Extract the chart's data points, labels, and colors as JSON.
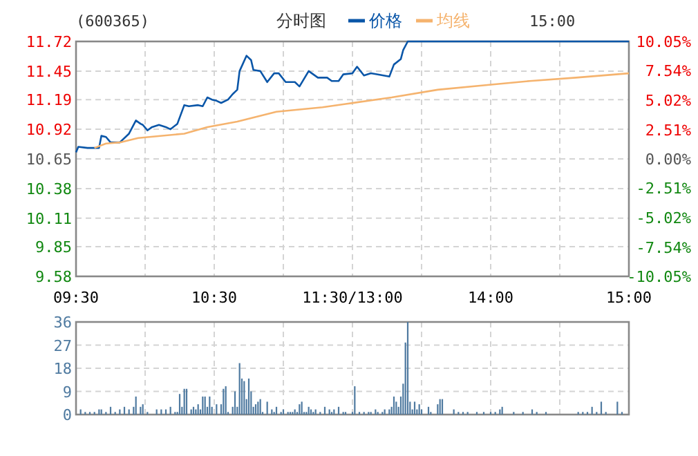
{
  "chart_data": [
    {
      "type": "line",
      "title": "(600365)",
      "subtitle": "分时图",
      "annotations": [
        "15:00"
      ],
      "categories": [
        "09:30",
        null,
        null,
        null,
        null,
        null,
        null,
        null,
        null,
        null,
        null,
        null,
        null,
        null,
        null,
        null,
        null,
        null,
        null,
        null,
        null,
        null,
        null,
        null,
        null,
        null,
        null,
        null,
        null,
        null,
        null,
        null,
        null,
        null,
        null,
        null,
        null,
        null,
        null,
        null,
        null,
        null,
        null,
        null,
        null,
        null,
        null,
        null,
        null,
        null,
        null,
        null,
        null,
        null,
        null,
        null,
        null,
        null,
        null,
        null,
        "10:30",
        null,
        null,
        null,
        null,
        null,
        null,
        null,
        null,
        null,
        null,
        null,
        null,
        null,
        null,
        null,
        null,
        null,
        null,
        null,
        null,
        null,
        null,
        null,
        null,
        null,
        null,
        null,
        null,
        null,
        null,
        null,
        null,
        null,
        null,
        null,
        null,
        null,
        null,
        null,
        null,
        null,
        null,
        null,
        null,
        null,
        null,
        null,
        null,
        null,
        null,
        null,
        null,
        null,
        null,
        null,
        null,
        null,
        null,
        null,
        "11:30/13:00",
        null,
        null,
        null,
        null,
        null,
        null,
        null,
        null,
        null,
        null,
        null,
        null,
        null,
        null,
        null,
        null,
        null,
        null,
        null,
        null,
        null,
        null,
        null,
        null,
        null,
        null,
        null,
        null,
        null,
        null,
        null,
        null,
        null,
        null,
        null,
        null,
        null,
        null,
        null,
        null,
        null,
        null,
        null,
        null,
        null,
        null,
        null,
        null,
        null,
        null,
        null,
        null,
        null,
        null,
        null,
        null,
        null,
        null,
        null,
        "14:00",
        null,
        null,
        null,
        null,
        null,
        null,
        null,
        null,
        null,
        null,
        null,
        null,
        null,
        null,
        null,
        null,
        null,
        null,
        null,
        null,
        null,
        null,
        null,
        null,
        null,
        null,
        null,
        null,
        null,
        null,
        null,
        null,
        null,
        null,
        null,
        null,
        null,
        null,
        null,
        null,
        null,
        null,
        null,
        null,
        null,
        null,
        null,
        null,
        null,
        null,
        null,
        null,
        null,
        null,
        null,
        null,
        null,
        null,
        null,
        "15:00"
      ],
      "ylim": [
        9.58,
        11.72
      ],
      "yticks": [
        9.58,
        9.85,
        10.11,
        10.38,
        10.65,
        10.92,
        11.19,
        11.45,
        11.72
      ],
      "y2lim": [
        -10.05,
        10.05
      ],
      "y2ticks": [
        {
          "value": -10.05,
          "label": "-10.05%"
        },
        {
          "value": -7.54,
          "label": "-7.54%"
        },
        {
          "value": -5.02,
          "label": "-5.02%"
        },
        {
          "value": -2.51,
          "label": "-2.51%"
        },
        {
          "value": 0,
          "label": "0.00%"
        },
        {
          "value": 2.51,
          "label": "2.51%"
        },
        {
          "value": 5.02,
          "label": "5.02%"
        },
        {
          "value": 7.54,
          "label": "7.54%"
        },
        {
          "value": 10.05,
          "label": "10.05%"
        }
      ],
      "grid": true,
      "legend": "top",
      "series": [
        {
          "name": "价格",
          "color": "#0a56a8",
          "values": [
            10.71,
            10.76,
            null,
            null,
            null,
            10.75,
            null,
            null,
            null,
            null,
            10.75,
            10.86,
            null,
            10.85,
            null,
            10.8,
            null,
            null,
            null,
            10.8,
            null,
            null,
            null,
            10.88,
            null,
            null,
            11.0,
            null,
            10.97,
            10.96,
            null,
            10.91,
            null,
            10.94,
            null,
            null,
            10.96,
            null,
            null,
            10.94,
            null,
            10.92,
            null,
            null,
            10.97,
            null,
            null,
            11.14,
            null,
            11.13,
            null,
            null,
            null,
            11.14,
            null,
            11.13,
            null,
            11.21,
            null,
            11.19,
            null,
            11.18,
            null,
            11.16,
            null,
            null,
            11.19,
            null,
            11.24,
            null,
            11.28,
            11.45,
            null,
            null,
            11.59,
            null,
            11.55,
            11.46,
            null,
            null,
            11.45,
            null,
            null,
            11.35,
            null,
            null,
            11.43,
            null,
            11.43,
            null,
            null,
            11.35,
            null,
            null,
            null,
            11.35,
            null,
            11.31,
            null,
            null,
            null,
            11.45,
            null,
            null,
            null,
            11.39,
            null,
            null,
            null,
            11.39,
            null,
            11.36,
            null,
            null,
            11.36,
            null,
            11.42,
            null,
            null,
            null,
            11.43,
            null,
            11.49,
            null,
            null,
            11.41,
            null,
            null,
            11.43,
            null,
            null,
            11.42,
            null,
            null,
            null,
            null,
            11.4,
            null,
            11.51,
            null,
            null,
            11.56,
            11.64,
            null,
            11.72,
            null,
            null,
            null,
            null,
            null,
            null,
            null,
            null,
            null,
            null,
            null,
            null,
            null,
            null,
            null,
            null,
            null,
            null,
            null,
            null,
            null,
            null,
            null,
            null,
            null,
            null,
            null,
            null,
            null,
            null,
            null,
            null,
            null,
            null,
            null,
            null,
            null,
            null,
            null,
            null,
            null,
            null,
            null,
            null,
            null,
            null,
            null,
            null,
            null,
            null,
            null,
            null,
            null,
            null,
            null,
            null,
            null,
            null,
            null,
            null,
            null,
            null,
            null,
            null,
            null,
            null,
            null,
            null,
            null,
            null,
            null,
            null,
            null,
            null,
            null,
            null,
            null,
            null,
            null,
            null,
            null,
            null,
            null,
            null,
            null,
            null,
            null,
            null,
            null,
            null,
            null,
            null,
            null,
            null,
            null,
            11.72
          ]
        },
        {
          "name": "均线",
          "color": "#f5b36e",
          "values": [
            null,
            null,
            null,
            null,
            null,
            null,
            null,
            null,
            10.75,
            null,
            null,
            null,
            null,
            10.79,
            null,
            null,
            null,
            null,
            null,
            10.8,
            null,
            null,
            null,
            null,
            null,
            null,
            null,
            10.84,
            null,
            null,
            null,
            null,
            null,
            null,
            null,
            null,
            null,
            null,
            null,
            null,
            null,
            null,
            null,
            null,
            null,
            null,
            null,
            10.88,
            null,
            null,
            null,
            null,
            null,
            null,
            null,
            null,
            null,
            10.94,
            null,
            null,
            null,
            null,
            null,
            null,
            null,
            null,
            null,
            null,
            null,
            null,
            10.99,
            null,
            null,
            null,
            null,
            null,
            null,
            null,
            null,
            null,
            null,
            null,
            null,
            null,
            null,
            null,
            null,
            11.08,
            null,
            null,
            null,
            null,
            null,
            null,
            null,
            null,
            null,
            null,
            null,
            null,
            null,
            null,
            null,
            null,
            null,
            null,
            null,
            11.12,
            null,
            null,
            null,
            null,
            null,
            null,
            null,
            null,
            null,
            11.15,
            null,
            null,
            null,
            null,
            null,
            null,
            null,
            null,
            null,
            null,
            null,
            null,
            null,
            null,
            null,
            null,
            null,
            null,
            null,
            11.21,
            null,
            null,
            null,
            null,
            null,
            null,
            null,
            null,
            null,
            null,
            null,
            null,
            null,
            null,
            null,
            null,
            null,
            null,
            null,
            11.28,
            null,
            null,
            null,
            null,
            null,
            null,
            null,
            null,
            null,
            null,
            null,
            null,
            null,
            null,
            null,
            null,
            null,
            null,
            null,
            11.32,
            null,
            null,
            null,
            null,
            null,
            null,
            null,
            null,
            null,
            null,
            null,
            null,
            null,
            null,
            null,
            null,
            null,
            null,
            null,
            11.36,
            null,
            null,
            null,
            null,
            null,
            null,
            null,
            null,
            null,
            null,
            null,
            null,
            null,
            null,
            null,
            null,
            null,
            null,
            null,
            11.39,
            null,
            null,
            null,
            null,
            null,
            null,
            null,
            null,
            null,
            null,
            null,
            null,
            null,
            null,
            null,
            null,
            null,
            null,
            null,
            null,
            null,
            null,
            11.43
          ]
        }
      ]
    },
    {
      "type": "bar",
      "color": "#4f7aa0",
      "tick_labels": "y",
      "categories": [
        null,
        null,
        null,
        null,
        null,
        null,
        null,
        null,
        null,
        null,
        null,
        null,
        null,
        null,
        null,
        null,
        null,
        null,
        null,
        null,
        null,
        null,
        null,
        null,
        null,
        null,
        null,
        null,
        null,
        null,
        null,
        null,
        null,
        null,
        null,
        null,
        null,
        null,
        null,
        null,
        null,
        null,
        null,
        null,
        null,
        null,
        null,
        null,
        null,
        null,
        null,
        null,
        null,
        null,
        null,
        null,
        null,
        null,
        null,
        null,
        null,
        null,
        null,
        null,
        null,
        null,
        null,
        null,
        null,
        null,
        null,
        null,
        null,
        null,
        null,
        null,
        null,
        null,
        null,
        null,
        null,
        null,
        null,
        null,
        null,
        null,
        null,
        null,
        null,
        null,
        null,
        null,
        null,
        null,
        null,
        null,
        null,
        null,
        null,
        null,
        null,
        null,
        null,
        null,
        null,
        null,
        null,
        null,
        null,
        null,
        null,
        null,
        null,
        null,
        null,
        null,
        null,
        null,
        null,
        null,
        null,
        null,
        null,
        null,
        null,
        null,
        null,
        null,
        null,
        null,
        null,
        null,
        null,
        null,
        null,
        null,
        null,
        null,
        null,
        null,
        null,
        null,
        null,
        null,
        null,
        null,
        null,
        null,
        null,
        null,
        null,
        null,
        null,
        null,
        null,
        null,
        null,
        null,
        null,
        null,
        null,
        null,
        null,
        null,
        null,
        null,
        null,
        null,
        null,
        null,
        null,
        null,
        null,
        null,
        null,
        null,
        null,
        null,
        null,
        null,
        null,
        null,
        null,
        null,
        null,
        null,
        null,
        null,
        null,
        null,
        null,
        null,
        null,
        null,
        null,
        null,
        null,
        null,
        null,
        null,
        null,
        null,
        null,
        null,
        null,
        null,
        null,
        null,
        null,
        null,
        null,
        null,
        null,
        null,
        null,
        null,
        null,
        null,
        null,
        null,
        null,
        null,
        null,
        null,
        null,
        null,
        null,
        null,
        null,
        null,
        null,
        null,
        null,
        null,
        null,
        null,
        null,
        null,
        null,
        null,
        null
      ],
      "ylim": [
        0,
        36
      ],
      "yticks": [
        0,
        9,
        18,
        27,
        36
      ],
      "grid": true,
      "values": [
        null,
        null,
        2,
        null,
        1,
        null,
        1,
        null,
        1,
        null,
        2,
        2,
        null,
        1,
        null,
        3,
        null,
        1,
        null,
        2,
        null,
        3,
        null,
        2,
        null,
        3,
        7,
        null,
        3,
        4,
        null,
        1,
        null,
        null,
        null,
        2,
        null,
        2,
        null,
        2,
        null,
        3,
        null,
        1,
        1,
        8,
        3,
        10,
        10,
        null,
        2,
        3,
        2,
        4,
        2,
        7,
        7,
        3,
        7,
        3,
        null,
        4,
        null,
        4,
        10,
        11,
        1,
        null,
        3,
        9,
        3,
        20,
        14,
        13,
        6,
        14,
        9,
        3,
        4,
        5,
        6,
        1,
        null,
        5,
        null,
        2,
        1,
        3,
        null,
        1,
        2,
        null,
        1,
        1,
        1,
        2,
        1,
        4,
        5,
        1,
        1,
        3,
        2,
        1,
        2,
        null,
        1,
        null,
        3,
        null,
        2,
        1,
        2,
        null,
        3,
        null,
        1,
        1,
        null,
        null,
        1,
        11,
        null,
        1,
        null,
        1,
        null,
        1,
        1,
        null,
        2,
        1,
        null,
        1,
        2,
        null,
        2,
        3,
        7,
        5,
        3,
        7,
        12,
        28,
        36,
        5,
        2,
        5,
        2,
        4,
        2,
        null,
        null,
        3,
        1,
        null,
        null,
        4,
        6,
        6,
        null,
        null,
        null,
        null,
        2,
        null,
        1,
        null,
        1,
        null,
        1,
        null,
        null,
        null,
        1,
        null,
        null,
        1,
        null,
        null,
        1,
        null,
        1,
        null,
        2,
        3,
        null,
        null,
        null,
        null,
        1,
        null,
        null,
        null,
        1,
        null,
        null,
        null,
        2,
        null,
        1,
        null,
        null,
        null,
        1,
        null,
        null,
        null,
        null,
        null,
        null,
        null,
        null,
        null,
        null,
        null,
        null,
        null,
        1,
        null,
        1,
        null,
        1,
        null,
        3,
        null,
        1,
        null,
        5,
        null,
        1,
        null,
        null,
        null,
        null,
        5,
        null,
        1,
        null,
        null,
        null
      ]
    }
  ]
}
